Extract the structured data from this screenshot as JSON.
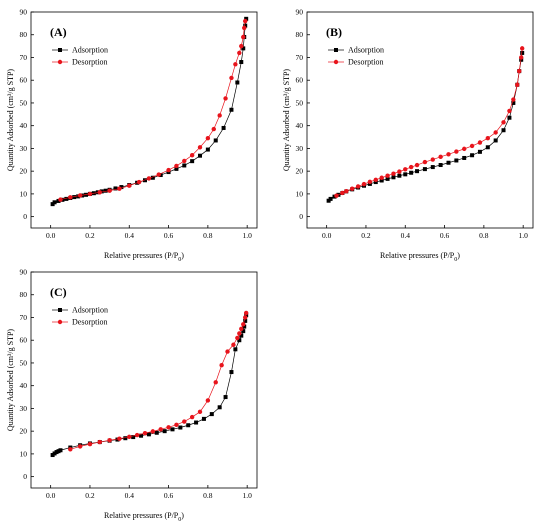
{
  "chart_data": [
    {
      "type": "scatter",
      "panel_label": "(A)",
      "xlabel": "Relative pressures (P/P",
      "xlabel_sub": "0",
      "xlabel_tail": ")",
      "ylabel": "Quantity Adsorbed (cm³/g STP)",
      "xlim": [
        -0.1,
        1.05
      ],
      "ylim": [
        -5,
        90
      ],
      "xticks": [
        "0.0",
        "0.2",
        "0.4",
        "0.6",
        "0.8",
        "1.0"
      ],
      "yticks": [
        "0",
        "10",
        "20",
        "30",
        "40",
        "50",
        "60",
        "70",
        "80",
        "90"
      ],
      "legend_position": "top-left",
      "colors": {
        "Adsorption": "#000000",
        "Desorption": "#e8141c"
      },
      "series": [
        {
          "name": "Adsorption",
          "marker": "square",
          "x": [
            0.01,
            0.02,
            0.04,
            0.06,
            0.08,
            0.1,
            0.12,
            0.14,
            0.16,
            0.18,
            0.2,
            0.22,
            0.24,
            0.26,
            0.28,
            0.3,
            0.33,
            0.36,
            0.4,
            0.44,
            0.48,
            0.52,
            0.56,
            0.6,
            0.64,
            0.68,
            0.72,
            0.76,
            0.8,
            0.84,
            0.88,
            0.92,
            0.95,
            0.97,
            0.98,
            0.985,
            0.99,
            0.995
          ],
          "y": [
            5.5,
            6.3,
            6.9,
            7.4,
            7.8,
            8.2,
            8.6,
            8.9,
            9.3,
            9.6,
            10.0,
            10.3,
            10.7,
            11.1,
            11.4,
            11.8,
            12.4,
            13.0,
            13.9,
            14.9,
            16.0,
            17.1,
            18.3,
            19.6,
            21.0,
            22.5,
            24.4,
            26.8,
            29.5,
            33.5,
            39.0,
            47.0,
            59.0,
            68.0,
            74.0,
            79.0,
            84.0,
            87.0
          ]
        },
        {
          "name": "Desorption",
          "marker": "circle",
          "x": [
            0.05,
            0.1,
            0.15,
            0.2,
            0.25,
            0.3,
            0.35,
            0.4,
            0.45,
            0.5,
            0.55,
            0.6,
            0.64,
            0.68,
            0.72,
            0.76,
            0.8,
            0.83,
            0.86,
            0.89,
            0.92,
            0.94,
            0.96,
            0.97,
            0.98,
            0.985,
            0.99
          ],
          "y": [
            7.5,
            8.5,
            9.3,
            10.0,
            10.7,
            11.4,
            12.3,
            13.6,
            15.2,
            16.8,
            18.5,
            20.5,
            22.3,
            24.5,
            27.0,
            30.5,
            34.5,
            38.5,
            44.5,
            52.0,
            61.0,
            67.0,
            72.0,
            75.0,
            79.0,
            83.0,
            86.0
          ]
        }
      ]
    },
    {
      "type": "scatter",
      "panel_label": "(B)",
      "xlabel": "Relative pressures (P/P",
      "xlabel_sub": "0",
      "xlabel_tail": ")",
      "ylabel": "Quantity Adsorbed (cm³/g STP)",
      "xlim": [
        -0.1,
        1.05
      ],
      "ylim": [
        -5,
        90
      ],
      "xticks": [
        "0.0",
        "0.2",
        "0.4",
        "0.6",
        "0.8",
        "1.0"
      ],
      "yticks": [
        "0",
        "10",
        "20",
        "30",
        "40",
        "50",
        "60",
        "70",
        "80",
        "90"
      ],
      "legend_position": "top-left",
      "colors": {
        "Adsorption": "#000000",
        "Desorption": "#e8141c"
      },
      "series": [
        {
          "name": "Adsorption",
          "marker": "square",
          "x": [
            0.01,
            0.02,
            0.04,
            0.06,
            0.08,
            0.1,
            0.13,
            0.16,
            0.19,
            0.22,
            0.25,
            0.28,
            0.31,
            0.34,
            0.37,
            0.4,
            0.43,
            0.46,
            0.5,
            0.54,
            0.58,
            0.62,
            0.66,
            0.7,
            0.74,
            0.78,
            0.82,
            0.86,
            0.9,
            0.93,
            0.95,
            0.97,
            0.98,
            0.99,
            0.995
          ],
          "y": [
            7.0,
            7.8,
            8.8,
            9.6,
            10.4,
            11.1,
            12.0,
            12.8,
            13.6,
            14.4,
            15.2,
            15.9,
            16.6,
            17.3,
            18.0,
            18.6,
            19.3,
            20.0,
            20.9,
            21.8,
            22.7,
            23.7,
            24.7,
            25.8,
            27.0,
            28.5,
            30.5,
            33.5,
            38.0,
            43.5,
            50.0,
            58.0,
            64.0,
            69.0,
            72.0
          ]
        },
        {
          "name": "Desorption",
          "marker": "circle",
          "x": [
            0.05,
            0.08,
            0.1,
            0.13,
            0.16,
            0.19,
            0.22,
            0.25,
            0.28,
            0.31,
            0.34,
            0.37,
            0.4,
            0.43,
            0.46,
            0.5,
            0.54,
            0.58,
            0.62,
            0.66,
            0.7,
            0.74,
            0.78,
            0.82,
            0.86,
            0.9,
            0.93,
            0.95,
            0.97,
            0.98,
            0.99,
            0.995
          ],
          "y": [
            9.2,
            10.4,
            11.2,
            12.3,
            13.3,
            14.3,
            15.3,
            16.2,
            17.1,
            18.0,
            18.9,
            19.8,
            20.8,
            21.8,
            22.7,
            24.0,
            25.1,
            26.3,
            27.4,
            28.6,
            29.8,
            31.1,
            32.6,
            34.5,
            37.0,
            41.5,
            46.5,
            51.5,
            58.0,
            64.0,
            70.0,
            74.0
          ]
        }
      ]
    },
    {
      "type": "scatter",
      "panel_label": "(C)",
      "xlabel": "Relative pressures (P/P",
      "xlabel_sub": "0",
      "xlabel_tail": ")",
      "ylabel": "Quantity Adsorbed (cm³/g STP)",
      "xlim": [
        -0.1,
        1.05
      ],
      "ylim": [
        -5,
        90
      ],
      "xticks": [
        "0.0",
        "0.2",
        "0.4",
        "0.6",
        "0.8",
        "1.0"
      ],
      "yticks": [
        "0",
        "10",
        "20",
        "30",
        "40",
        "50",
        "60",
        "70",
        "80",
        "90"
      ],
      "legend_position": "top-left",
      "colors": {
        "Adsorption": "#000000",
        "Desorption": "#e8141c"
      },
      "series": [
        {
          "name": "Adsorption",
          "marker": "square",
          "x": [
            0.01,
            0.02,
            0.03,
            0.04,
            0.05,
            0.1,
            0.15,
            0.2,
            0.25,
            0.3,
            0.34,
            0.38,
            0.42,
            0.46,
            0.5,
            0.54,
            0.58,
            0.62,
            0.66,
            0.7,
            0.74,
            0.78,
            0.82,
            0.86,
            0.89,
            0.92,
            0.94,
            0.96,
            0.97,
            0.98,
            0.985,
            0.99,
            0.995
          ],
          "y": [
            9.5,
            10.2,
            10.8,
            11.2,
            11.6,
            12.8,
            13.8,
            14.6,
            15.2,
            15.8,
            16.3,
            16.9,
            17.4,
            18.0,
            18.6,
            19.3,
            20.0,
            20.8,
            21.6,
            22.6,
            23.8,
            25.4,
            27.5,
            30.5,
            35.0,
            46.0,
            56.0,
            60.0,
            62.0,
            64.0,
            66.0,
            68.5,
            71.0
          ]
        },
        {
          "name": "Desorption",
          "marker": "circle",
          "x": [
            0.1,
            0.15,
            0.2,
            0.25,
            0.3,
            0.35,
            0.4,
            0.44,
            0.48,
            0.52,
            0.56,
            0.6,
            0.64,
            0.68,
            0.72,
            0.76,
            0.8,
            0.84,
            0.87,
            0.9,
            0.93,
            0.95,
            0.96,
            0.97,
            0.98,
            0.99,
            0.995
          ],
          "y": [
            12.0,
            13.3,
            14.3,
            15.2,
            16.0,
            16.7,
            17.5,
            18.3,
            19.1,
            19.9,
            20.8,
            21.7,
            22.8,
            24.2,
            26.2,
            28.5,
            33.5,
            41.5,
            49.0,
            55.0,
            58.0,
            61.0,
            63.0,
            65.0,
            67.0,
            70.0,
            72.0
          ]
        }
      ]
    }
  ]
}
